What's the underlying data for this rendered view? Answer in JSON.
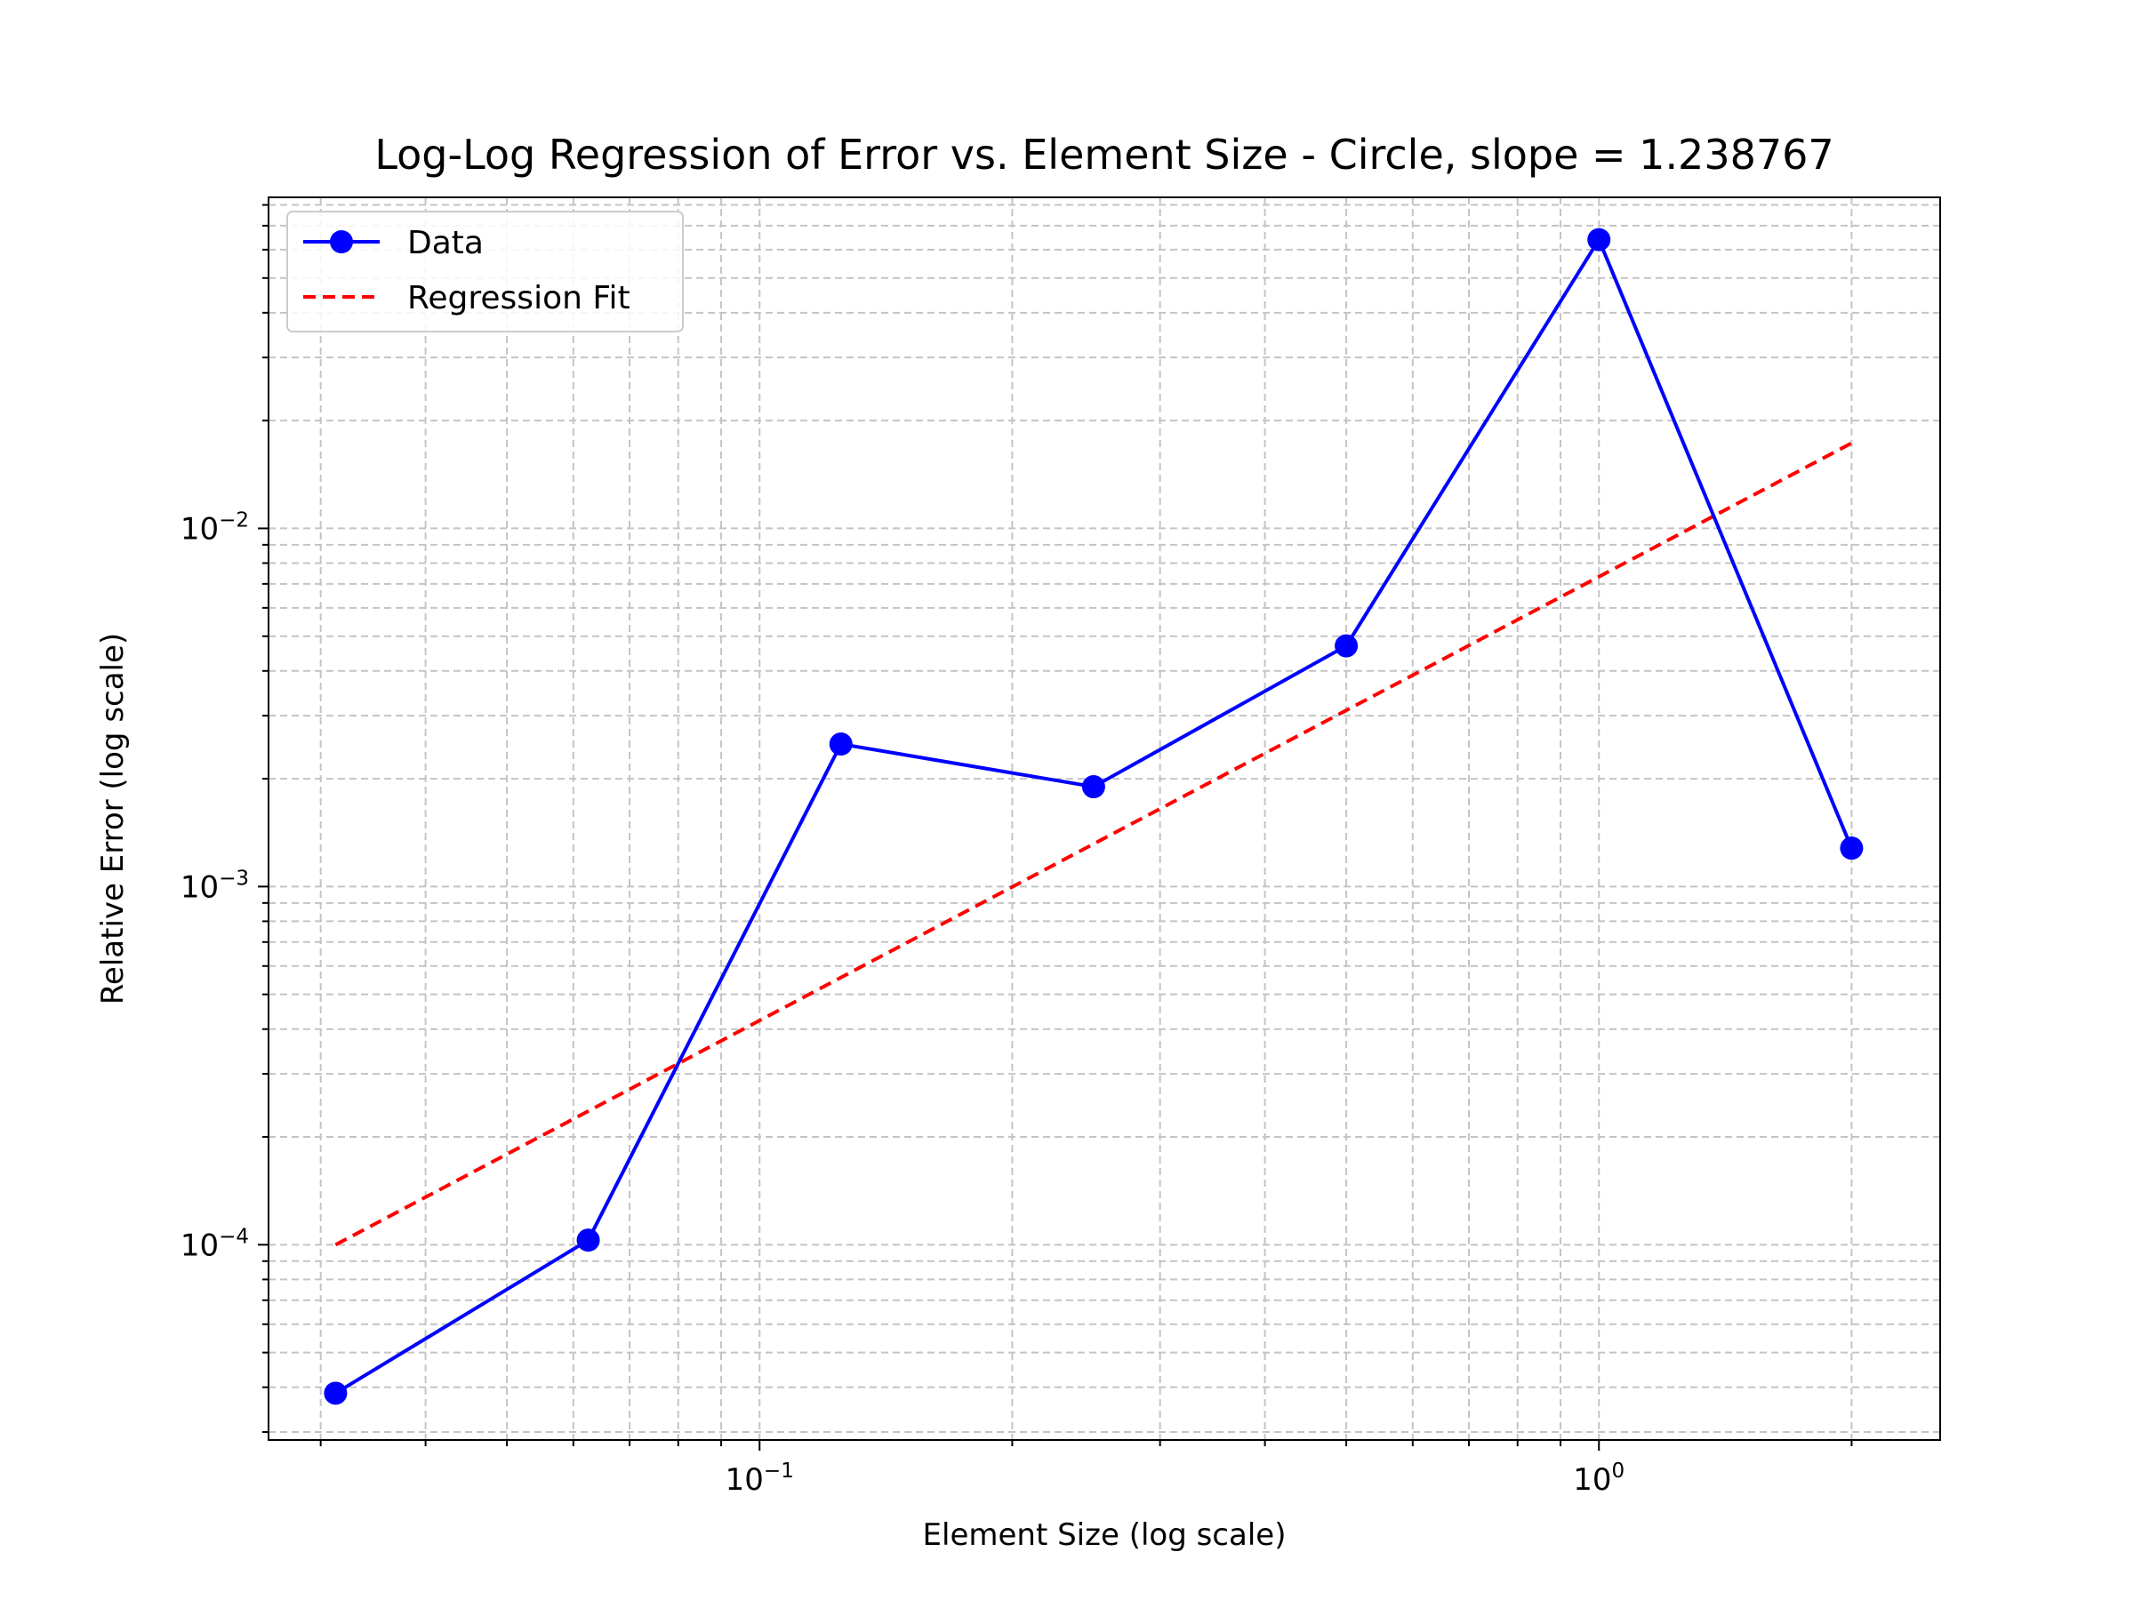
{
  "chart_data": {
    "type": "line",
    "title": "Log-Log Regression of Error vs. Element Size - Circle, slope = 1.238767",
    "xlabel": "Element Size (log scale)",
    "ylabel": "Relative Error (log scale)",
    "xscale": "log",
    "yscale": "log",
    "xlim": [
      0.026,
      2.55
    ],
    "ylim": [
      2.85e-05,
      0.084
    ],
    "grid": "both (major and minor), dashed",
    "legend_position": "top-left",
    "x_ticks": [
      {
        "value": 0.1,
        "base": "10",
        "exp": "−1"
      },
      {
        "value": 1,
        "base": "10",
        "exp": "0"
      }
    ],
    "y_ticks": [
      {
        "value": 0.0001,
        "base": "10",
        "exp": "−4"
      },
      {
        "value": 0.001,
        "base": "10",
        "exp": "−3"
      },
      {
        "value": 0.01,
        "base": "10",
        "exp": "−2"
      }
    ],
    "series": [
      {
        "name": "Data",
        "style": "solid line with circle markers",
        "color": "#0000ff",
        "x": [
          0.03125,
          0.0625,
          0.125,
          0.25,
          0.5,
          1,
          2
        ],
        "y": [
          3.85e-05,
          0.000103,
          0.0025,
          0.0019,
          0.0047,
          0.064,
          0.00128
        ]
      },
      {
        "name": "Regression Fit",
        "style": "dashed line",
        "color": "#ff0000",
        "x": [
          0.03125,
          2
        ],
        "y": [
          0.0001,
          0.0173
        ]
      }
    ]
  }
}
